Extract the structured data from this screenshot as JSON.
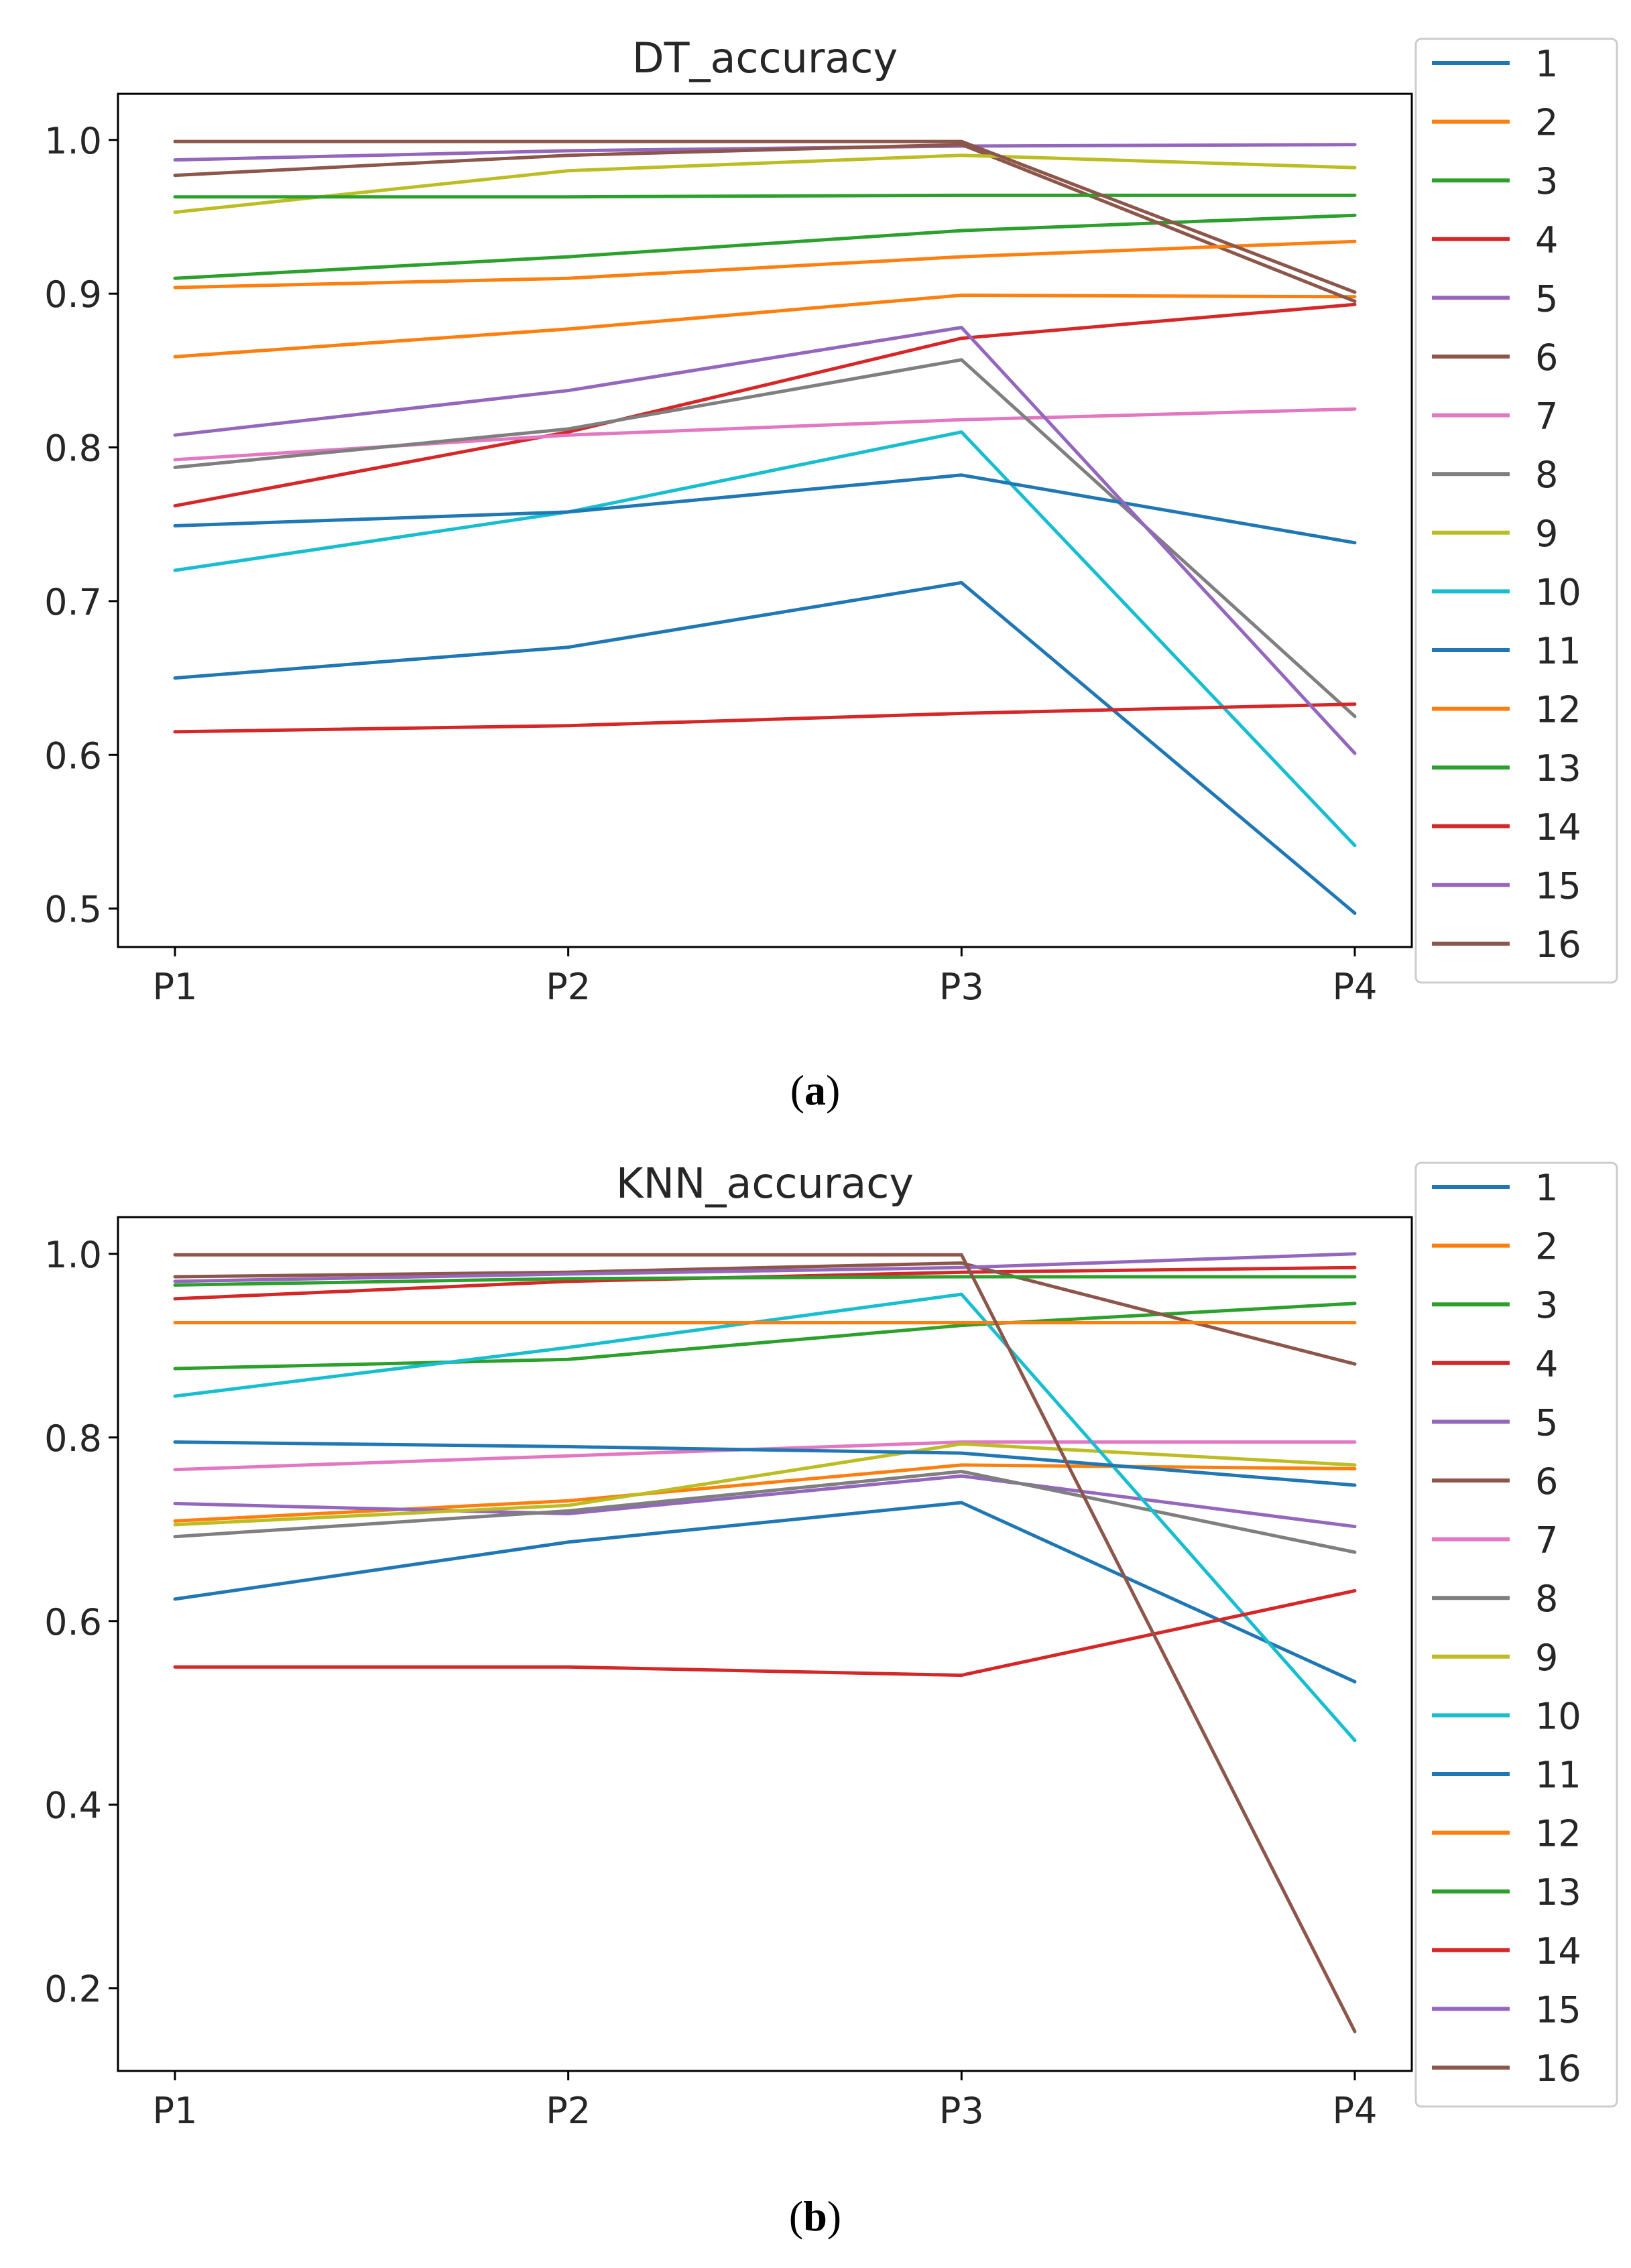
{
  "colors": [
    "#1f77b4",
    "#ff7f0e",
    "#2ca02c",
    "#d62728",
    "#9467bd",
    "#8c564b",
    "#e377c2",
    "#7f7f7f",
    "#bcbd22",
    "#17becf",
    "#1f77b4",
    "#ff7f0e",
    "#2ca02c",
    "#d62728",
    "#9467bd",
    "#8c564b"
  ],
  "chart_data": [
    {
      "type": "line",
      "title": "DT_accuracy",
      "caption": {
        "open": "(",
        "letter": "a",
        "close": ")"
      },
      "categories": [
        "P1",
        "P2",
        "P3",
        "P4"
      ],
      "ylim": [
        0.475,
        1.03
      ],
      "yticks": [
        0.5,
        0.6,
        0.7,
        0.8,
        0.9,
        1.0
      ],
      "ytick_labels": [
        "0.5",
        "0.6",
        "0.7",
        "0.8",
        "0.9",
        "1.0"
      ],
      "grid": false,
      "legend_position": "outside-right",
      "series": [
        {
          "name": "1",
          "values": [
            0.65,
            0.67,
            0.712,
            0.497
          ]
        },
        {
          "name": "2",
          "values": [
            0.859,
            0.877,
            0.899,
            0.898
          ]
        },
        {
          "name": "3",
          "values": [
            0.91,
            0.924,
            0.941,
            0.951
          ]
        },
        {
          "name": "4",
          "values": [
            0.762,
            0.81,
            0.871,
            0.893
          ]
        },
        {
          "name": "5",
          "values": [
            0.987,
            0.993,
            0.996,
            0.997
          ]
        },
        {
          "name": "6",
          "values": [
            0.977,
            0.99,
            0.997,
            0.895
          ]
        },
        {
          "name": "7",
          "values": [
            0.792,
            0.808,
            0.818,
            0.825
          ]
        },
        {
          "name": "8",
          "values": [
            0.787,
            0.812,
            0.857,
            0.625
          ]
        },
        {
          "name": "9",
          "values": [
            0.953,
            0.98,
            0.99,
            0.982
          ]
        },
        {
          "name": "10",
          "values": [
            0.72,
            0.758,
            0.81,
            0.541
          ]
        },
        {
          "name": "11",
          "values": [
            0.749,
            0.758,
            0.782,
            0.738
          ]
        },
        {
          "name": "12",
          "values": [
            0.904,
            0.91,
            0.924,
            0.934
          ]
        },
        {
          "name": "13",
          "values": [
            0.963,
            0.963,
            0.964,
            0.964
          ]
        },
        {
          "name": "14",
          "values": [
            0.615,
            0.619,
            0.627,
            0.633
          ]
        },
        {
          "name": "15",
          "values": [
            0.808,
            0.837,
            0.878,
            0.601
          ]
        },
        {
          "name": "16",
          "values": [
            0.999,
            0.999,
            0.999,
            0.901
          ]
        }
      ]
    },
    {
      "type": "line",
      "title": "KNN_accuracy",
      "caption": {
        "open": "(",
        "letter": "b",
        "close": ")"
      },
      "categories": [
        "P1",
        "P2",
        "P3",
        "P4"
      ],
      "ylim": [
        0.11,
        1.04
      ],
      "yticks": [
        0.2,
        0.4,
        0.6,
        0.8,
        1.0
      ],
      "ytick_labels": [
        "0.2",
        "0.4",
        "0.6",
        "0.8",
        "1.0"
      ],
      "grid": false,
      "legend_position": "outside-right",
      "series": [
        {
          "name": "1",
          "values": [
            0.624,
            0.686,
            0.729,
            0.534
          ]
        },
        {
          "name": "2",
          "values": [
            0.709,
            0.731,
            0.77,
            0.766
          ]
        },
        {
          "name": "3",
          "values": [
            0.875,
            0.885,
            0.922,
            0.946
          ]
        },
        {
          "name": "4",
          "values": [
            0.951,
            0.97,
            0.98,
            0.985
          ]
        },
        {
          "name": "5",
          "values": [
            0.728,
            0.717,
            0.758,
            0.703
          ]
        },
        {
          "name": "6",
          "values": [
            0.975,
            0.98,
            0.99,
            0.88
          ]
        },
        {
          "name": "7",
          "values": [
            0.765,
            0.78,
            0.795,
            0.795
          ]
        },
        {
          "name": "8",
          "values": [
            0.692,
            0.72,
            0.763,
            0.675
          ]
        },
        {
          "name": "9",
          "values": [
            0.705,
            0.726,
            0.793,
            0.77
          ]
        },
        {
          "name": "10",
          "values": [
            0.845,
            0.898,
            0.956,
            0.47
          ]
        },
        {
          "name": "11",
          "values": [
            0.795,
            0.79,
            0.783,
            0.748
          ]
        },
        {
          "name": "12",
          "values": [
            0.925,
            0.925,
            0.925,
            0.925
          ]
        },
        {
          "name": "13",
          "values": [
            0.966,
            0.973,
            0.975,
            0.975
          ]
        },
        {
          "name": "14",
          "values": [
            0.55,
            0.55,
            0.541,
            0.633
          ]
        },
        {
          "name": "15",
          "values": [
            0.97,
            0.978,
            0.985,
            1.0
          ]
        },
        {
          "name": "16",
          "values": [
            0.999,
            0.999,
            0.999,
            0.153
          ]
        }
      ]
    }
  ]
}
